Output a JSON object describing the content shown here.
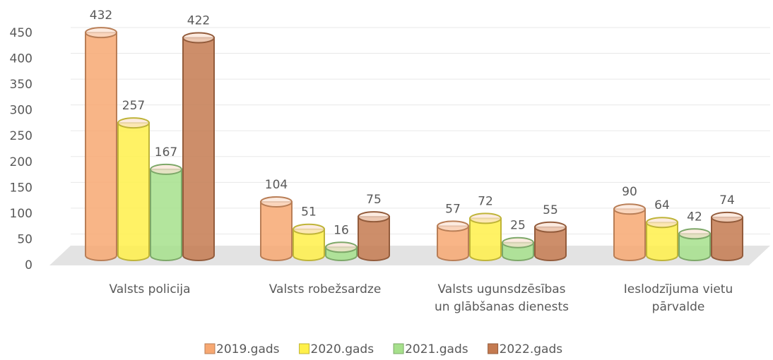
{
  "chart_data": {
    "type": "cylinder_bar",
    "categories": [
      "Valsts policija",
      "Valsts robežsardze",
      "Valsts ugunsdzēsības un glābšanas dienests",
      "Ieslodzījuma vietu pārvalde"
    ],
    "series": [
      {
        "name": "2019.gads",
        "color": "#f7a872",
        "values": [
          432,
          104,
          57,
          90
        ]
      },
      {
        "name": "2020.gads",
        "color": "#fff04a",
        "values": [
          257,
          51,
          72,
          64
        ]
      },
      {
        "name": "2021.gads",
        "color": "#a6e08c",
        "values": [
          167,
          16,
          25,
          42
        ]
      },
      {
        "name": "2022.gads",
        "color": "#c47a50",
        "values": [
          422,
          75,
          55,
          74
        ]
      }
    ],
    "ylim": [
      0,
      450
    ],
    "yticks": [
      0,
      50,
      100,
      150,
      200,
      250,
      300,
      350,
      400,
      450
    ],
    "grid": true,
    "legend": "bottom"
  }
}
